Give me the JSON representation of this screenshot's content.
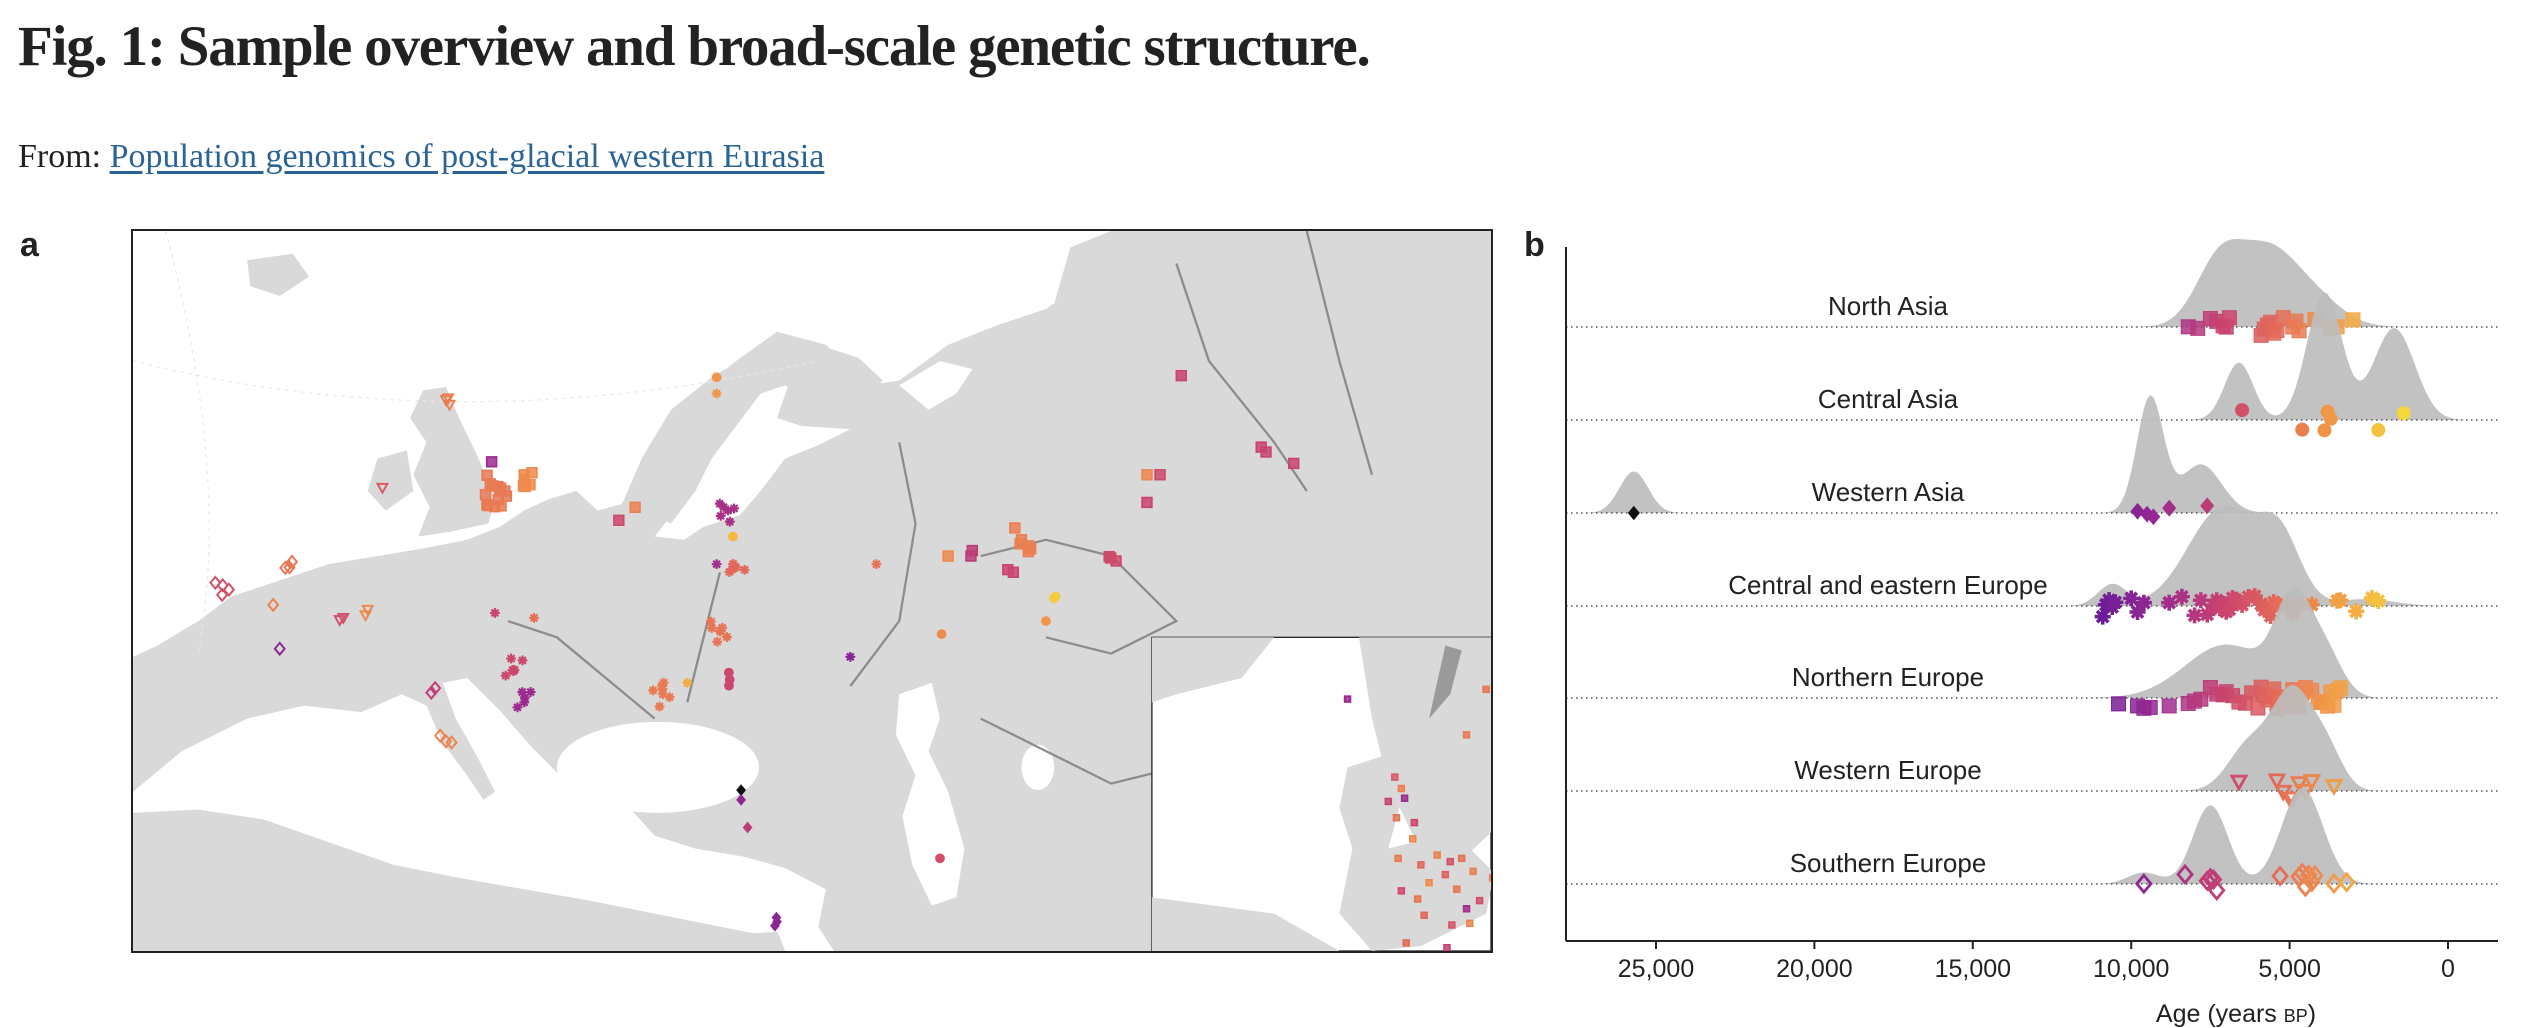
{
  "header": {
    "title": "Fig. 1: Sample overview and broad-scale genetic structure.",
    "from_label": "From:",
    "source_link": "Population genomics of post-glacial western Eurasia"
  },
  "panels": {
    "a": "a",
    "b": "b"
  },
  "colors": {
    "link": "#2a6496",
    "land": "#d9d9d9",
    "sea": "#ffffff",
    "density": "#bdbdbd",
    "river": "#8c8c8c"
  },
  "chart_data": {
    "type": "ridgeline",
    "xlabel": "Age (years ",
    "xlabel_unit": "BP",
    "xlabel_close": ")",
    "xlim": [
      28500,
      -1000
    ],
    "xticks": [
      25000,
      20000,
      15000,
      10000,
      5000,
      0
    ],
    "xtick_labels": [
      "25,000",
      "20,000",
      "15,000",
      "10,000",
      "5,000",
      "0"
    ],
    "color_scale": [
      [
        11000,
        "#6a1b9a"
      ],
      [
        9000,
        "#9c2a8f"
      ],
      [
        7000,
        "#c9436e"
      ],
      [
        5500,
        "#e2665a"
      ],
      [
        4000,
        "#f0904a"
      ],
      [
        2500,
        "#f5b940"
      ],
      [
        1000,
        "#f3e23a"
      ]
    ],
    "series": [
      {
        "name": "North Asia",
        "marker": "square",
        "density": [
          [
            7200,
            1,
            750
          ],
          [
            5700,
            1,
            850
          ],
          [
            4300,
            0.45,
            900
          ]
        ],
        "ages": [
          8200,
          7900,
          7500,
          7300,
          7100,
          7000,
          6900,
          5900,
          5800,
          5700,
          5600,
          5500,
          5400,
          5200,
          4900,
          4800,
          4700,
          4200,
          3700,
          3500,
          3000
        ]
      },
      {
        "name": "Central Asia",
        "marker": "circle",
        "density": [
          [
            6600,
            0.45,
            450
          ],
          [
            3900,
            1,
            550
          ],
          [
            1700,
            0.72,
            650
          ]
        ],
        "ages": [
          6500,
          4600,
          3900,
          3800,
          3700,
          2200,
          1400
        ]
      },
      {
        "name": "Western Asia",
        "marker": "diamond",
        "density": [
          [
            9400,
            1,
            420
          ],
          [
            7800,
            0.42,
            650
          ],
          [
            25700,
            0.36,
            450
          ]
        ],
        "ages": [
          9800,
          9500,
          9300,
          8800,
          7600
        ],
        "outlier": {
          "age": 25700,
          "color": "#111111"
        }
      },
      {
        "name": "Central and eastern Europe",
        "marker": "star",
        "density": [
          [
            10600,
            0.22,
            450
          ],
          [
            7100,
            1,
            1100
          ],
          [
            5300,
            0.62,
            650
          ],
          [
            2600,
            0.07,
            900
          ]
        ],
        "ages": [
          10900,
          10800,
          10700,
          10600,
          10500,
          10000,
          9800,
          9600,
          8800,
          8400,
          8000,
          7800,
          7600,
          7400,
          7300,
          7200,
          7100,
          7000,
          6900,
          6800,
          6700,
          6500,
          6300,
          6100,
          5900,
          5800,
          5700,
          5600,
          5500,
          5400,
          5300,
          5100,
          4900,
          4700,
          4300,
          3500,
          3400,
          2900,
          2400,
          2200
        ]
      },
      {
        "name": "Northern Europe",
        "marker": "square",
        "density": [
          [
            7000,
            0.6,
            1300
          ],
          [
            4900,
            1,
            550
          ],
          [
            3900,
            0.5,
            550
          ]
        ],
        "ages": [
          10400,
          9800,
          9600,
          9400,
          8800,
          8200,
          8000,
          7800,
          7500,
          7300,
          7100,
          7000,
          6800,
          6600,
          6400,
          6200,
          6000,
          5900,
          5800,
          5700,
          5600,
          5500,
          5400,
          5300,
          5200,
          5100,
          5000,
          4900,
          4800,
          4700,
          4600,
          4500,
          4300,
          4100,
          4000,
          3900,
          3800,
          3700,
          3600,
          3500,
          3400
        ]
      },
      {
        "name": "Western Europe",
        "marker": "triangle",
        "density": [
          [
            6300,
            0.45,
            650
          ],
          [
            4900,
            1,
            650
          ],
          [
            3800,
            0.35,
            500
          ]
        ],
        "ages": [
          6600,
          5400,
          5200,
          5000,
          4900,
          4700,
          4500,
          4300,
          3600
        ]
      },
      {
        "name": "Southern Europe",
        "marker": "open-diamond",
        "density": [
          [
            9600,
            0.12,
            500
          ],
          [
            7500,
            0.82,
            550
          ],
          [
            4600,
            1,
            650
          ]
        ],
        "ages": [
          9600,
          8300,
          7600,
          7500,
          7400,
          7300,
          5300,
          4700,
          4600,
          4500,
          4400,
          4300,
          4200,
          3600,
          3200
        ]
      }
    ]
  },
  "map_samples": [
    {
      "lon": 225,
      "lat": 160,
      "n": 14,
      "age": 4800,
      "m": "square"
    },
    {
      "lon": 240,
      "lat": 150,
      "n": 6,
      "age": 4200,
      "m": "square"
    },
    {
      "lon": 220,
      "lat": 142,
      "n": 1,
      "age": 9000,
      "m": "square"
    },
    {
      "lon": 153,
      "lat": 158,
      "n": 1,
      "age": 6000,
      "m": "triangle"
    },
    {
      "lon": 192,
      "lat": 104,
      "n": 3,
      "age": 4600,
      "m": "triangle"
    },
    {
      "lon": 55,
      "lat": 218,
      "n": 4,
      "age": 6500,
      "m": "open-diamond"
    },
    {
      "lon": 96,
      "lat": 207,
      "n": 3,
      "age": 5000,
      "m": "open-diamond"
    },
    {
      "lon": 86,
      "lat": 230,
      "n": 1,
      "age": 4500,
      "m": "open-diamond"
    },
    {
      "lon": 90,
      "lat": 257,
      "n": 1,
      "age": 9600,
      "m": "open-diamond"
    },
    {
      "lon": 129,
      "lat": 238,
      "n": 2,
      "age": 6500,
      "m": "triangle"
    },
    {
      "lon": 144,
      "lat": 233,
      "n": 2,
      "age": 4300,
      "m": "triangle"
    },
    {
      "lon": 183,
      "lat": 284,
      "n": 2,
      "age": 7400,
      "m": "open-diamond"
    },
    {
      "lon": 192,
      "lat": 314,
      "n": 3,
      "age": 4500,
      "m": "open-diamond"
    },
    {
      "lon": 234,
      "lat": 270,
      "n": 6,
      "age": 6800,
      "m": "star"
    },
    {
      "lon": 240,
      "lat": 290,
      "n": 5,
      "age": 9000,
      "m": "star"
    },
    {
      "lon": 222,
      "lat": 235,
      "n": 1,
      "age": 6900,
      "m": "star"
    },
    {
      "lon": 246,
      "lat": 238,
      "n": 1,
      "age": 5200,
      "m": "star"
    },
    {
      "lon": 298,
      "lat": 178,
      "n": 1,
      "age": 6800,
      "m": "square"
    },
    {
      "lon": 308,
      "lat": 170,
      "n": 1,
      "age": 4500,
      "m": "square"
    },
    {
      "lon": 365,
      "lat": 172,
      "n": 6,
      "age": 8500,
      "m": "star"
    },
    {
      "lon": 368,
      "lat": 188,
      "n": 1,
      "age": 2500,
      "m": "circle"
    },
    {
      "lon": 358,
      "lat": 205,
      "n": 1,
      "age": 8800,
      "m": "star"
    },
    {
      "lon": 370,
      "lat": 207,
      "n": 5,
      "age": 5500,
      "m": "star"
    },
    {
      "lon": 360,
      "lat": 246,
      "n": 7,
      "age": 5000,
      "m": "star"
    },
    {
      "lon": 366,
      "lat": 276,
      "n": 3,
      "age": 6800,
      "m": "circle"
    },
    {
      "lon": 340,
      "lat": 278,
      "n": 1,
      "age": 3000,
      "m": "star"
    },
    {
      "lon": 325,
      "lat": 285,
      "n": 7,
      "age": 4800,
      "m": "star"
    },
    {
      "lon": 358,
      "lat": 90,
      "n": 1,
      "age": 3800,
      "m": "circle"
    },
    {
      "lon": 358,
      "lat": 100,
      "n": 1,
      "age": 3800,
      "m": "star"
    },
    {
      "lon": 456,
      "lat": 205,
      "n": 1,
      "age": 5000,
      "m": "star"
    },
    {
      "lon": 440,
      "lat": 262,
      "n": 1,
      "age": 10000,
      "m": "star"
    },
    {
      "lon": 500,
      "lat": 200,
      "n": 1,
      "age": 4300,
      "m": "square"
    },
    {
      "lon": 514,
      "lat": 200,
      "n": 2,
      "age": 7600,
      "m": "square"
    },
    {
      "lon": 545,
      "lat": 190,
      "n": 6,
      "age": 4600,
      "m": "square"
    },
    {
      "lon": 540,
      "lat": 210,
      "n": 2,
      "age": 7000,
      "m": "square"
    },
    {
      "lon": 565,
      "lat": 226,
      "n": 2,
      "age": 1800,
      "m": "circle"
    },
    {
      "lon": 560,
      "lat": 240,
      "n": 1,
      "age": 3800,
      "m": "circle"
    },
    {
      "lon": 496,
      "lat": 248,
      "n": 1,
      "age": 4200,
      "m": "circle"
    },
    {
      "lon": 603,
      "lat": 203,
      "n": 3,
      "age": 6700,
      "m": "square"
    },
    {
      "lon": 622,
      "lat": 150,
      "n": 1,
      "age": 4400,
      "m": "square"
    },
    {
      "lon": 630,
      "lat": 150,
      "n": 1,
      "age": 6800,
      "m": "square"
    },
    {
      "lon": 622,
      "lat": 167,
      "n": 1,
      "age": 7000,
      "m": "square"
    },
    {
      "lon": 695,
      "lat": 136,
      "n": 2,
      "age": 7000,
      "m": "square"
    },
    {
      "lon": 712,
      "lat": 143,
      "n": 1,
      "age": 7000,
      "m": "square"
    },
    {
      "lon": 643,
      "lat": 89,
      "n": 1,
      "age": 7000,
      "m": "square"
    },
    {
      "lon": 373,
      "lat": 344,
      "n": 1,
      "age": 25700,
      "m": "diamond"
    },
    {
      "lon": 373,
      "lat": 350,
      "n": 1,
      "age": 9500,
      "m": "diamond"
    },
    {
      "lon": 377,
      "lat": 367,
      "n": 1,
      "age": 7600,
      "m": "diamond"
    },
    {
      "lon": 395,
      "lat": 425,
      "n": 3,
      "age": 9600,
      "m": "diamond"
    },
    {
      "lon": 495,
      "lat": 386,
      "n": 1,
      "age": 6500,
      "m": "circle"
    }
  ],
  "inset_samples": [
    {
      "x": 745,
      "y": 288,
      "age": 9200
    },
    {
      "x": 830,
      "y": 282,
      "age": 5000
    },
    {
      "x": 848,
      "y": 278,
      "age": 9000
    },
    {
      "x": 847,
      "y": 291,
      "age": 4500
    },
    {
      "x": 846,
      "y": 305,
      "age": 9300
    },
    {
      "x": 818,
      "y": 310,
      "age": 4800
    },
    {
      "x": 774,
      "y": 336,
      "age": 6000
    },
    {
      "x": 778,
      "y": 343,
      "age": 4600
    },
    {
      "x": 770,
      "y": 351,
      "age": 7000
    },
    {
      "x": 780,
      "y": 349,
      "age": 9000
    },
    {
      "x": 775,
      "y": 361,
      "age": 5000
    },
    {
      "x": 786,
      "y": 364,
      "age": 6800
    },
    {
      "x": 785,
      "y": 374,
      "age": 4300
    },
    {
      "x": 776,
      "y": 386,
      "age": 4700
    },
    {
      "x": 790,
      "y": 390,
      "age": 5400
    },
    {
      "x": 800,
      "y": 384,
      "age": 4400
    },
    {
      "x": 808,
      "y": 388,
      "age": 6400
    },
    {
      "x": 815,
      "y": 386,
      "age": 5100
    },
    {
      "x": 822,
      "y": 394,
      "age": 4600
    },
    {
      "x": 805,
      "y": 396,
      "age": 5800
    },
    {
      "x": 795,
      "y": 401,
      "age": 4200
    },
    {
      "x": 778,
      "y": 406,
      "age": 6700
    },
    {
      "x": 788,
      "y": 411,
      "age": 5000
    },
    {
      "x": 812,
      "y": 405,
      "age": 4900
    },
    {
      "x": 826,
      "y": 412,
      "age": 6500
    },
    {
      "x": 834,
      "y": 398,
      "age": 4500
    },
    {
      "x": 842,
      "y": 404,
      "age": 7000
    },
    {
      "x": 792,
      "y": 421,
      "age": 5500
    },
    {
      "x": 809,
      "y": 427,
      "age": 6200
    },
    {
      "x": 820,
      "y": 426,
      "age": 4400
    },
    {
      "x": 781,
      "y": 438,
      "age": 5400
    },
    {
      "x": 806,
      "y": 441,
      "age": 7200
    },
    {
      "x": 807,
      "y": 452,
      "age": 5200
    },
    {
      "x": 863,
      "y": 429,
      "age": 4600
    },
    {
      "x": 818,
      "y": 417,
      "age": 8800
    }
  ]
}
